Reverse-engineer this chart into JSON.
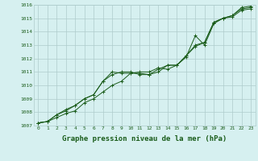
{
  "x": [
    0,
    1,
    2,
    3,
    4,
    5,
    6,
    7,
    8,
    9,
    10,
    11,
    12,
    13,
    14,
    15,
    16,
    17,
    18,
    19,
    20,
    21,
    22,
    23
  ],
  "line1": [
    1007.2,
    1007.3,
    1007.6,
    1007.9,
    1008.1,
    1008.7,
    1009.0,
    1009.5,
    1010.0,
    1010.3,
    1010.9,
    1011.0,
    1011.0,
    1011.3,
    1011.2,
    1011.5,
    1012.1,
    1013.7,
    1013.0,
    1014.6,
    1015.0,
    1015.1,
    1015.6,
    1015.7
  ],
  "line2": [
    1007.2,
    1007.3,
    1007.8,
    1008.1,
    1008.5,
    1009.0,
    1009.3,
    1010.3,
    1010.8,
    1011.0,
    1011.0,
    1010.8,
    1010.8,
    1011.0,
    1011.5,
    1011.5,
    1012.2,
    1013.0,
    1013.2,
    1014.7,
    1015.0,
    1015.2,
    1015.7,
    1015.8
  ],
  "line3": [
    1007.2,
    1007.3,
    1007.8,
    1008.2,
    1008.5,
    1009.0,
    1009.3,
    1010.3,
    1011.0,
    1010.9,
    1010.9,
    1010.9,
    1010.8,
    1011.2,
    1011.5,
    1011.5,
    1012.2,
    1012.9,
    1013.2,
    1014.7,
    1015.0,
    1015.2,
    1015.8,
    1015.9
  ],
  "ylim": [
    1007,
    1016
  ],
  "xlim": [
    -0.5,
    23.5
  ],
  "yticks": [
    1007,
    1008,
    1009,
    1010,
    1011,
    1012,
    1013,
    1014,
    1015,
    1016
  ],
  "xticks": [
    0,
    1,
    2,
    3,
    4,
    5,
    6,
    7,
    8,
    9,
    10,
    11,
    12,
    13,
    14,
    15,
    16,
    17,
    18,
    19,
    20,
    21,
    22,
    23
  ],
  "xlabel": "Graphe pression niveau de la mer (hPa)",
  "line_color": "#1a5c1a",
  "bg_color": "#d6f0f0",
  "grid_color": "#aecccc",
  "label_color": "#1a5c1a",
  "tick_fontsize": 4.5,
  "xlabel_fontsize": 6.5
}
